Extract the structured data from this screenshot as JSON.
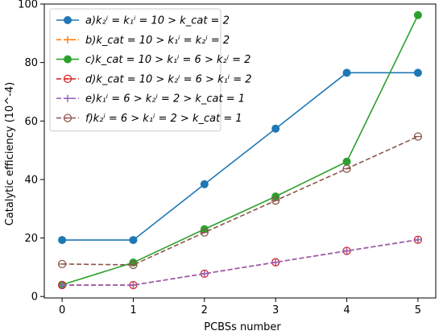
{
  "chart_data": {
    "type": "line",
    "title": "",
    "xlabel": "PCBSs number",
    "ylabel": "Catalytic efficiency (10^-4)",
    "x": [
      0,
      1,
      2,
      3,
      4,
      5
    ],
    "xlim": [
      -0.25,
      5.25
    ],
    "ylim": [
      -0.5,
      100
    ],
    "xticks": [
      "0",
      "1",
      "2",
      "3",
      "4",
      "5"
    ],
    "yticks": [
      0,
      20,
      40,
      60,
      80,
      100
    ],
    "grid": false,
    "legend_position": "top-left",
    "series": [
      {
        "name": "a)k₂ⁱ = k₁ⁱ = 10 > k_cat = 2",
        "legend_prefix": "a)",
        "legend_math": "k₂ⁱ = k₁ⁱ = 10 > k꜀ₐₜ = 2",
        "values": [
          19.3,
          19.3,
          38.4,
          57.4,
          76.5,
          76.5
        ],
        "color": "#1f77b4",
        "dash": "solid",
        "marker": "filled-circle"
      },
      {
        "name": "b)k_cat = 10 > k₁ⁱ = k₂ⁱ = 2",
        "legend_prefix": "b)",
        "legend_math": "k꜀ₐₜ = 10 > k₁ⁱ = k₂ⁱ = 2",
        "values": [
          3.9,
          3.9,
          7.8,
          11.7,
          15.6,
          19.4
        ],
        "color": "#ff7f0e",
        "dash": "dashed",
        "marker": "plus"
      },
      {
        "name": "c)k_cat = 10 > k₁ⁱ = 6 > k₂ⁱ = 2",
        "legend_prefix": "c)",
        "legend_math": "k꜀ₐₜ = 10 > k₁ⁱ = 6 > k₂ⁱ = 2",
        "values": [
          4.0,
          11.6,
          23.0,
          34.2,
          46.1,
          96.2
        ],
        "color": "#2ca02c",
        "dash": "solid",
        "marker": "filled-circle"
      },
      {
        "name": "d)k_cat = 10 > k₂ⁱ = 6 > k₁ⁱ = 2",
        "legend_prefix": "d)",
        "legend_math": "k꜀ₐₜ = 10 > k₂ⁱ = 6 > k₁ⁱ = 2",
        "values": [
          3.9,
          3.9,
          7.8,
          11.7,
          15.6,
          19.4
        ],
        "color": "#d62728",
        "dash": "dashed",
        "marker": "open-circle-line"
      },
      {
        "name": "e)k₁ⁱ = 6 > k₂ⁱ = 2 > k_cat = 1",
        "legend_prefix": "e)",
        "legend_math": "k₁ⁱ = 6 > k₂ⁱ = 2 > k꜀ₐₜ = 1",
        "values": [
          3.9,
          3.9,
          7.8,
          11.7,
          15.6,
          19.4
        ],
        "color": "#9467bd",
        "dash": "dashed",
        "marker": "plus"
      },
      {
        "name": "f)k₂ⁱ = 6 > k₁ⁱ = 2 > k_cat = 1",
        "legend_prefix": "f)",
        "legend_math": "k₂ⁱ = 6 > k₁ⁱ = 2 > k꜀ₐₜ = 1",
        "values": [
          11.1,
          10.8,
          21.9,
          32.8,
          43.7,
          54.7
        ],
        "color": "#8c564b",
        "dash": "dashed",
        "marker": "open-circle-line"
      }
    ]
  }
}
